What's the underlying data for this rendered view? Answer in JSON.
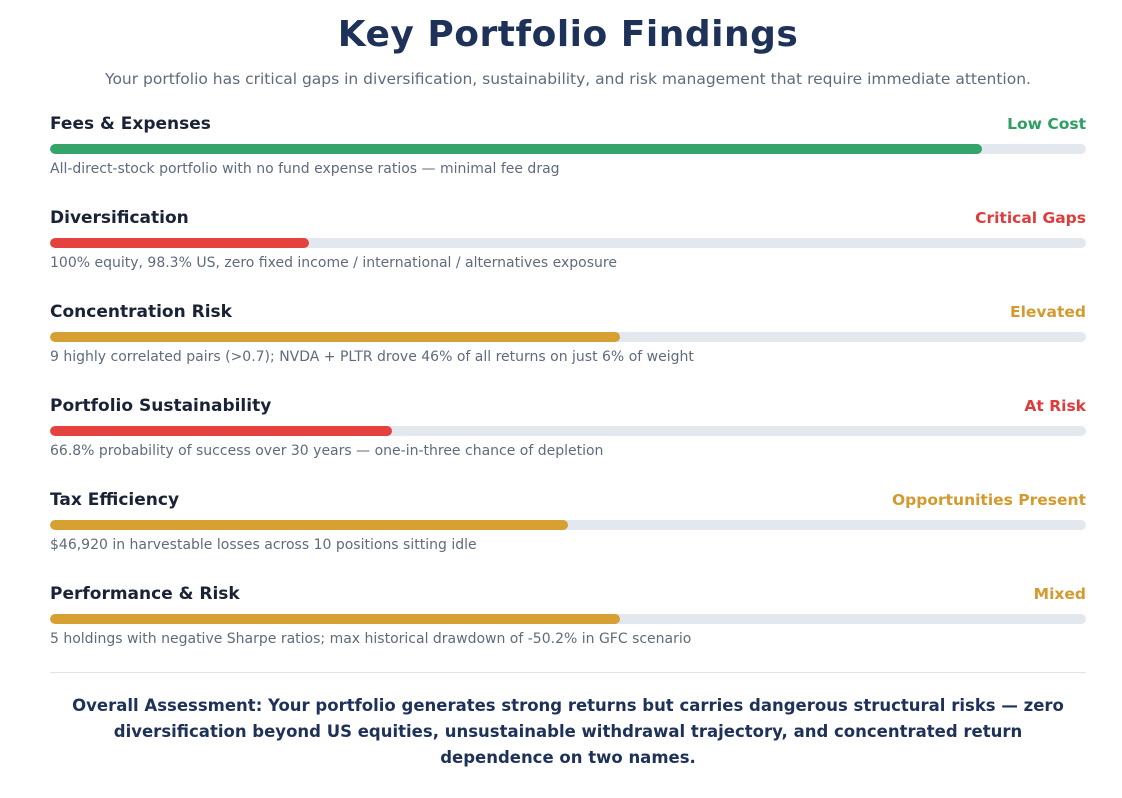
{
  "header": {
    "title": "Key Portfolio Findings",
    "subtitle": "Your portfolio has critical gaps in diversification, sustainability, and risk management that require immediate attention."
  },
  "findings": [
    {
      "name": "Fees & Expenses",
      "status": "Low Cost",
      "status_color": "#2e9e63",
      "fill_color": "#35a46b",
      "score_fraction": 0.9,
      "description": "All-direct-stock portfolio with no fund expense ratios — minimal fee drag"
    },
    {
      "name": "Diversification",
      "status": "Critical Gaps",
      "status_color": "#e03b3b",
      "fill_color": "#e5413f",
      "score_fraction": 0.25,
      "description": "100% equity, 98.3% US, zero fixed income / international / alternatives exposure"
    },
    {
      "name": "Concentration Risk",
      "status": "Elevated",
      "status_color": "#d49a2e",
      "fill_color": "#d6a033",
      "score_fraction": 0.55,
      "description": "9 highly correlated pairs (>0.7); NVDA + PLTR drove 46% of all returns on just 6% of weight"
    },
    {
      "name": "Portfolio Sustainability",
      "status": "At Risk",
      "status_color": "#e03b3b",
      "fill_color": "#e5413f",
      "score_fraction": 0.33,
      "description": "66.8% probability of success over 30 years — one-in-three chance of depletion"
    },
    {
      "name": "Tax Efficiency",
      "status": "Opportunities Present",
      "status_color": "#d49a2e",
      "fill_color": "#d6a033",
      "score_fraction": 0.5,
      "description": "$46,920 in harvestable losses across 10 positions sitting idle"
    },
    {
      "name": "Performance & Risk",
      "status": "Mixed",
      "status_color": "#d49a2e",
      "fill_color": "#d6a033",
      "score_fraction": 0.55,
      "description": "5 holdings with negative Sharpe ratios; max historical drawdown of -50.2% in GFC scenario"
    }
  ],
  "overall": {
    "text": "Overall Assessment: Your portfolio generates strong returns but carries dangerous structural risks — zero diversification beyond US equities, unsustainable withdrawal trajectory, and concentrated return dependence on two names."
  }
}
